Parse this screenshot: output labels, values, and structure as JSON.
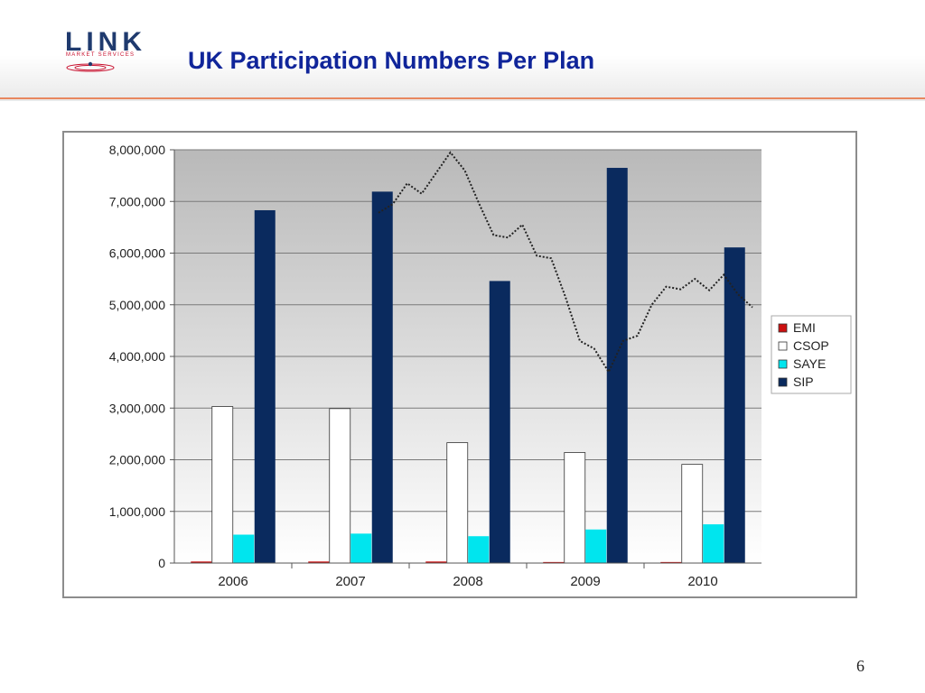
{
  "header": {
    "logo_text": "LINK",
    "logo_subtext": "MARKET SERVICES",
    "title": "UK Participation Numbers Per Plan"
  },
  "page_number": "6",
  "colors": {
    "title": "#10259a",
    "header_rule": "#e8875f",
    "plot_bg_top": "#b9b9b9",
    "plot_bg_bottom": "#ffffff"
  },
  "chart_data": {
    "type": "bar",
    "categories": [
      "2006",
      "2007",
      "2008",
      "2009",
      "2010"
    ],
    "ylim": [
      0,
      8000000
    ],
    "yticks": [
      "0",
      "1,000,000",
      "2,000,000",
      "3,000,000",
      "4,000,000",
      "5,000,000",
      "6,000,000",
      "7,000,000",
      "8,000,000"
    ],
    "grid": true,
    "legend_position": "right",
    "series": [
      {
        "name": "EMI",
        "color": "#cc1010",
        "values": [
          30000,
          30000,
          30000,
          20000,
          20000
        ]
      },
      {
        "name": "CSOP",
        "color": "#ffffff",
        "values": [
          3030000,
          2990000,
          2330000,
          2140000,
          1910000
        ]
      },
      {
        "name": "SAYE",
        "color": "#00e5ee",
        "values": [
          550000,
          570000,
          520000,
          650000,
          750000
        ]
      },
      {
        "name": "SIP",
        "color": "#0a2a5e",
        "values": [
          6830000,
          7190000,
          5460000,
          7650000,
          6110000
        ]
      }
    ],
    "overlay_line": {
      "style": "dotted",
      "color": "#222222",
      "values": [
        6780000,
        6950000,
        7350000,
        7150000,
        7550000,
        7950000,
        7600000,
        6950000,
        6350000,
        6300000,
        6550000,
        5950000,
        5900000,
        5150000,
        4300000,
        4150000,
        3700000,
        4300000,
        4400000,
        5000000,
        5350000,
        5300000,
        5500000,
        5280000,
        5580000,
        5200000,
        4950000
      ]
    }
  }
}
